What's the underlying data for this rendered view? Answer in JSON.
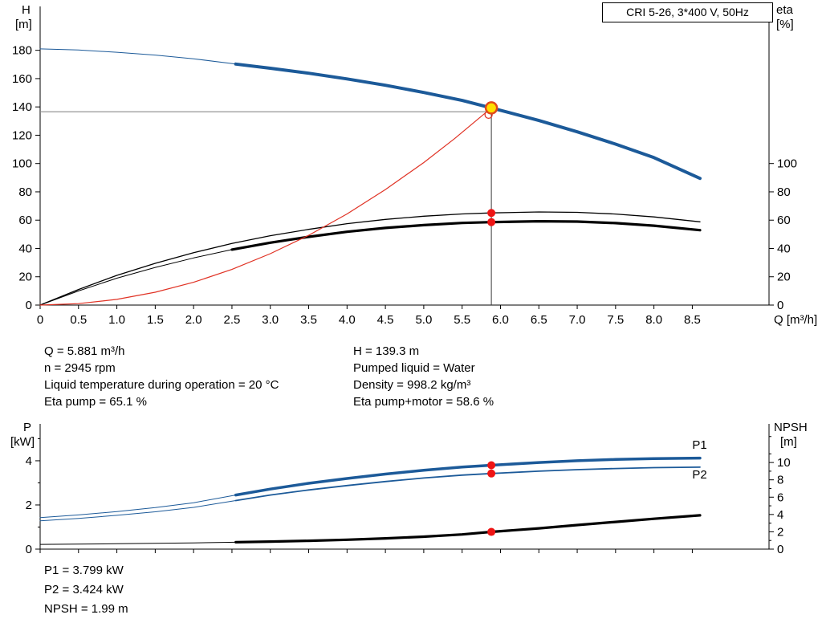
{
  "header": {
    "title_box": "CRI 5-26, 3*400 V, 50Hz"
  },
  "axis_titles": {
    "top_left_1": "H",
    "top_left_2": "[m]",
    "top_right_1": "eta",
    "top_right_2": "[%]",
    "bottom_left_1": "P",
    "bottom_left_2": "[kW]",
    "bottom_right_1": "NPSH",
    "bottom_right_2": "[m]"
  },
  "info_top_left": [
    "Q = 5.881 m³/h",
    "n = 2945 rpm",
    "Liquid temperature during operation = 20 °C",
    "Eta pump = 65.1 %"
  ],
  "info_top_right": [
    "H = 139.3 m",
    "Pumped liquid = Water",
    "Density = 998.2 kg/m³",
    "Eta pump+motor = 58.6 %"
  ],
  "info_bottom": [
    "P1 = 3.799 kW",
    "P2 = 3.424 kW",
    "NPSH = 1.99 m"
  ],
  "colors": {
    "curve_blue": "#1c5a99",
    "curve_black": "#000000",
    "system_red": "#e03224",
    "dot_red": "#ee1414",
    "duty_fill": "#ffdf00",
    "duty_ring": "#e0481a",
    "guide_gray": "#8a8a8a",
    "guide_dark": "#3a3a3a"
  },
  "chart_data": [
    {
      "type": "line",
      "title": "CRI 5-26, 3*400 V, 50Hz",
      "x": {
        "label": "Q [m³/h]",
        "min": 0,
        "max": 9.5,
        "show_labels": true,
        "ticks": [
          {
            "v": 0,
            "l": "0"
          },
          {
            "v": 0.5,
            "l": "0.5"
          },
          {
            "v": 1,
            "l": "1.0"
          },
          {
            "v": 1.5,
            "l": "1.5"
          },
          {
            "v": 2,
            "l": "2.0"
          },
          {
            "v": 2.5,
            "l": "2.5"
          },
          {
            "v": 3,
            "l": "3.0"
          },
          {
            "v": 3.5,
            "l": "3.5"
          },
          {
            "v": 4,
            "l": "4.0"
          },
          {
            "v": 4.5,
            "l": "4.5"
          },
          {
            "v": 5,
            "l": "5.0"
          },
          {
            "v": 5.5,
            "l": "5.5"
          },
          {
            "v": 6,
            "l": "6.0"
          },
          {
            "v": 6.5,
            "l": "6.5"
          },
          {
            "v": 7,
            "l": "7.0"
          },
          {
            "v": 7.5,
            "l": "7.5"
          },
          {
            "v": 8,
            "l": "8.0"
          },
          {
            "v": 8.5,
            "l": "8.5"
          }
        ]
      },
      "y_left": {
        "label": "H [m]",
        "min": 0,
        "max": 211,
        "ticks": [
          0,
          20,
          40,
          60,
          80,
          100,
          120,
          140,
          160,
          180
        ]
      },
      "y_right": {
        "label": "eta [%]",
        "min": 0,
        "max": 211,
        "ticks": [
          0,
          20,
          40,
          60,
          80,
          100
        ]
      },
      "series": [
        {
          "name": "head-curve-extension",
          "axis": "left",
          "color": "#1c5a99",
          "width": 1,
          "points": [
            [
              0,
              181
            ],
            [
              0.5,
              180.2
            ],
            [
              1,
              178.6
            ],
            [
              1.5,
              176.6
            ],
            [
              2,
              174
            ],
            [
              2.55,
              170.3
            ]
          ]
        },
        {
          "name": "head-curve",
          "axis": "left",
          "color": "#1c5a99",
          "width": 4,
          "points": [
            [
              2.55,
              170.3
            ],
            [
              3,
              167.3
            ],
            [
              3.5,
              163.8
            ],
            [
              4,
              159.8
            ],
            [
              4.5,
              155.3
            ],
            [
              5,
              150.2
            ],
            [
              5.5,
              144.6
            ],
            [
              5.881,
              139.3
            ],
            [
              6.5,
              130.4
            ],
            [
              7,
              122.4
            ],
            [
              7.5,
              113.7
            ],
            [
              8,
              104.2
            ],
            [
              8.6,
              89.5
            ]
          ]
        },
        {
          "name": "eta-pump-curve",
          "axis": "right",
          "color": "#000000",
          "width": 1.3,
          "points": [
            [
              0,
              0
            ],
            [
              0.5,
              11
            ],
            [
              1,
              21
            ],
            [
              1.5,
              29.5
            ],
            [
              2,
              37
            ],
            [
              2.5,
              43.5
            ],
            [
              3,
              49
            ],
            [
              3.5,
              53.5
            ],
            [
              4,
              57.5
            ],
            [
              4.5,
              60.5
            ],
            [
              5,
              62.8
            ],
            [
              5.5,
              64.4
            ],
            [
              5.881,
              65.1
            ],
            [
              6.5,
              65.8
            ],
            [
              7,
              65.5
            ],
            [
              7.5,
              64.3
            ],
            [
              8,
              62.3
            ],
            [
              8.6,
              58.8
            ]
          ]
        },
        {
          "name": "eta-pump-motor-extension",
          "axis": "right",
          "color": "#000000",
          "width": 1,
          "points": [
            [
              0,
              0
            ],
            [
              0.5,
              10
            ],
            [
              1,
              19
            ],
            [
              1.5,
              26.6
            ],
            [
              2,
              33.3
            ],
            [
              2.5,
              39.2
            ]
          ]
        },
        {
          "name": "eta-pump-motor-curve",
          "axis": "right",
          "color": "#000000",
          "width": 3.2,
          "points": [
            [
              2.5,
              39.2
            ],
            [
              3,
              44.1
            ],
            [
              3.5,
              48.2
            ],
            [
              4,
              51.8
            ],
            [
              4.5,
              54.5
            ],
            [
              5,
              56.5
            ],
            [
              5.5,
              58
            ],
            [
              5.881,
              58.6
            ],
            [
              6.5,
              59.2
            ],
            [
              7,
              59
            ],
            [
              7.5,
              57.9
            ],
            [
              8,
              56.1
            ],
            [
              8.6,
              52.9
            ]
          ]
        },
        {
          "name": "system-curve",
          "axis": "left",
          "color": "#e03224",
          "width": 1.2,
          "points": [
            [
              0,
              0
            ],
            [
              0.5,
              1
            ],
            [
              1,
              4
            ],
            [
              1.5,
              9.1
            ],
            [
              2,
              16.1
            ],
            [
              2.5,
              25.2
            ],
            [
              3,
              36.3
            ],
            [
              3.5,
              49.3
            ],
            [
              4,
              64.4
            ],
            [
              4.5,
              81.6
            ],
            [
              5,
              100.7
            ],
            [
              5.4,
              117.5
            ],
            [
              5.881,
              139.3
            ]
          ]
        }
      ],
      "guides": [
        {
          "kind": "v",
          "x": 5.881,
          "y_from": 0,
          "y_to": 139.3,
          "axis": "left",
          "color": "#3a3a3a",
          "width": 1
        },
        {
          "kind": "h",
          "y": 136.6,
          "x_from": 0,
          "x_to": 5.881,
          "axis": "left",
          "color": "#8a8a8a",
          "width": 1.2
        }
      ],
      "markers": [
        {
          "kind": "open-circle",
          "x": 5.845,
          "y": 134.5,
          "axis": "left",
          "color": "#e03224",
          "r": 4.5
        },
        {
          "kind": "duty-circle",
          "x": 5.881,
          "y": 139.3,
          "axis": "left",
          "r": 7
        },
        {
          "kind": "dot",
          "x": 5.881,
          "y": 65.1,
          "axis": "right",
          "color": "#ee1414",
          "r": 5
        },
        {
          "kind": "dot",
          "x": 5.881,
          "y": 58.6,
          "axis": "right",
          "color": "#ee1414",
          "r": 5
        }
      ],
      "annotations": []
    },
    {
      "type": "line",
      "title": "Power and NPSH curves",
      "x": {
        "label": "",
        "min": 0,
        "max": 9.5,
        "show_labels": false,
        "ticks": [
          0,
          0.5,
          1,
          1.5,
          2,
          2.5,
          3,
          3.5,
          4,
          4.5,
          5,
          5.5,
          6,
          6.5,
          7,
          7.5,
          8,
          8.5
        ]
      },
      "y_left": {
        "label": "P [kW]",
        "min": 0,
        "max": 5.67,
        "ticks": [
          0,
          2,
          4
        ],
        "minor": [
          1,
          3,
          5
        ]
      },
      "y_right": {
        "label": "NPSH [m]",
        "min": 0,
        "max": 14.46,
        "ticks": [
          0,
          2,
          4,
          6,
          8,
          10
        ],
        "minor": [
          1,
          3,
          5,
          7,
          9,
          11,
          13
        ]
      },
      "series": [
        {
          "name": "p1-curve-extension",
          "axis": "left",
          "color": "#1c5a99",
          "width": 1,
          "points": [
            [
              0,
              1.43
            ],
            [
              0.5,
              1.55
            ],
            [
              1,
              1.7
            ],
            [
              1.5,
              1.88
            ],
            [
              2,
              2.1
            ],
            [
              2.55,
              2.45
            ]
          ]
        },
        {
          "name": "p1-curve",
          "axis": "left",
          "color": "#1c5a99",
          "width": 3.5,
          "points": [
            [
              2.55,
              2.45
            ],
            [
              3,
              2.72
            ],
            [
              3.5,
              2.98
            ],
            [
              4,
              3.2
            ],
            [
              4.5,
              3.4
            ],
            [
              5,
              3.57
            ],
            [
              5.5,
              3.72
            ],
            [
              5.881,
              3.799
            ],
            [
              6.5,
              3.92
            ],
            [
              7,
              4
            ],
            [
              7.5,
              4.06
            ],
            [
              8,
              4.1
            ],
            [
              8.6,
              4.12
            ]
          ]
        },
        {
          "name": "p2-curve-extension",
          "axis": "left",
          "color": "#1c5a99",
          "width": 1,
          "points": [
            [
              0,
              1.28
            ],
            [
              0.5,
              1.39
            ],
            [
              1,
              1.53
            ],
            [
              1.5,
              1.69
            ],
            [
              2,
              1.89
            ],
            [
              2.55,
              2.2
            ]
          ]
        },
        {
          "name": "p2-curve",
          "axis": "left",
          "color": "#1c5a99",
          "width": 1.8,
          "points": [
            [
              2.55,
              2.2
            ],
            [
              3,
              2.45
            ],
            [
              3.5,
              2.68
            ],
            [
              4,
              2.88
            ],
            [
              4.5,
              3.06
            ],
            [
              5,
              3.22
            ],
            [
              5.5,
              3.35
            ],
            [
              5.881,
              3.424
            ],
            [
              6.5,
              3.53
            ],
            [
              7,
              3.6
            ],
            [
              7.5,
              3.65
            ],
            [
              8,
              3.69
            ],
            [
              8.6,
              3.71
            ]
          ]
        },
        {
          "name": "npsh-curve-extension",
          "axis": "right",
          "color": "#000000",
          "width": 1,
          "points": [
            [
              0,
              0.55
            ],
            [
              1,
              0.62
            ],
            [
              2,
              0.72
            ],
            [
              2.55,
              0.8
            ]
          ]
        },
        {
          "name": "npsh-curve",
          "axis": "right",
          "color": "#000000",
          "width": 3.2,
          "points": [
            [
              2.55,
              0.8
            ],
            [
              3,
              0.87
            ],
            [
              3.5,
              0.96
            ],
            [
              4,
              1.08
            ],
            [
              4.5,
              1.24
            ],
            [
              5,
              1.44
            ],
            [
              5.5,
              1.7
            ],
            [
              5.881,
              1.99
            ],
            [
              6.5,
              2.4
            ],
            [
              7,
              2.78
            ],
            [
              7.5,
              3.14
            ],
            [
              8,
              3.5
            ],
            [
              8.6,
              3.9
            ]
          ]
        }
      ],
      "guides": [],
      "markers": [
        {
          "kind": "dot",
          "x": 5.881,
          "y": 3.799,
          "axis": "left",
          "color": "#ee1414",
          "r": 5
        },
        {
          "kind": "dot",
          "x": 5.881,
          "y": 3.424,
          "axis": "left",
          "color": "#ee1414",
          "r": 5
        },
        {
          "kind": "dot",
          "x": 5.881,
          "y": 1.99,
          "axis": "right",
          "color": "#ee1414",
          "r": 5
        }
      ],
      "annotations": [
        {
          "text": "P1",
          "x": 8.5,
          "y": 4.55,
          "axis": "left",
          "color": "#1c5a99"
        },
        {
          "text": "P2",
          "x": 8.5,
          "y": 3.2,
          "axis": "left",
          "color": "#1c5a99"
        }
      ]
    }
  ]
}
